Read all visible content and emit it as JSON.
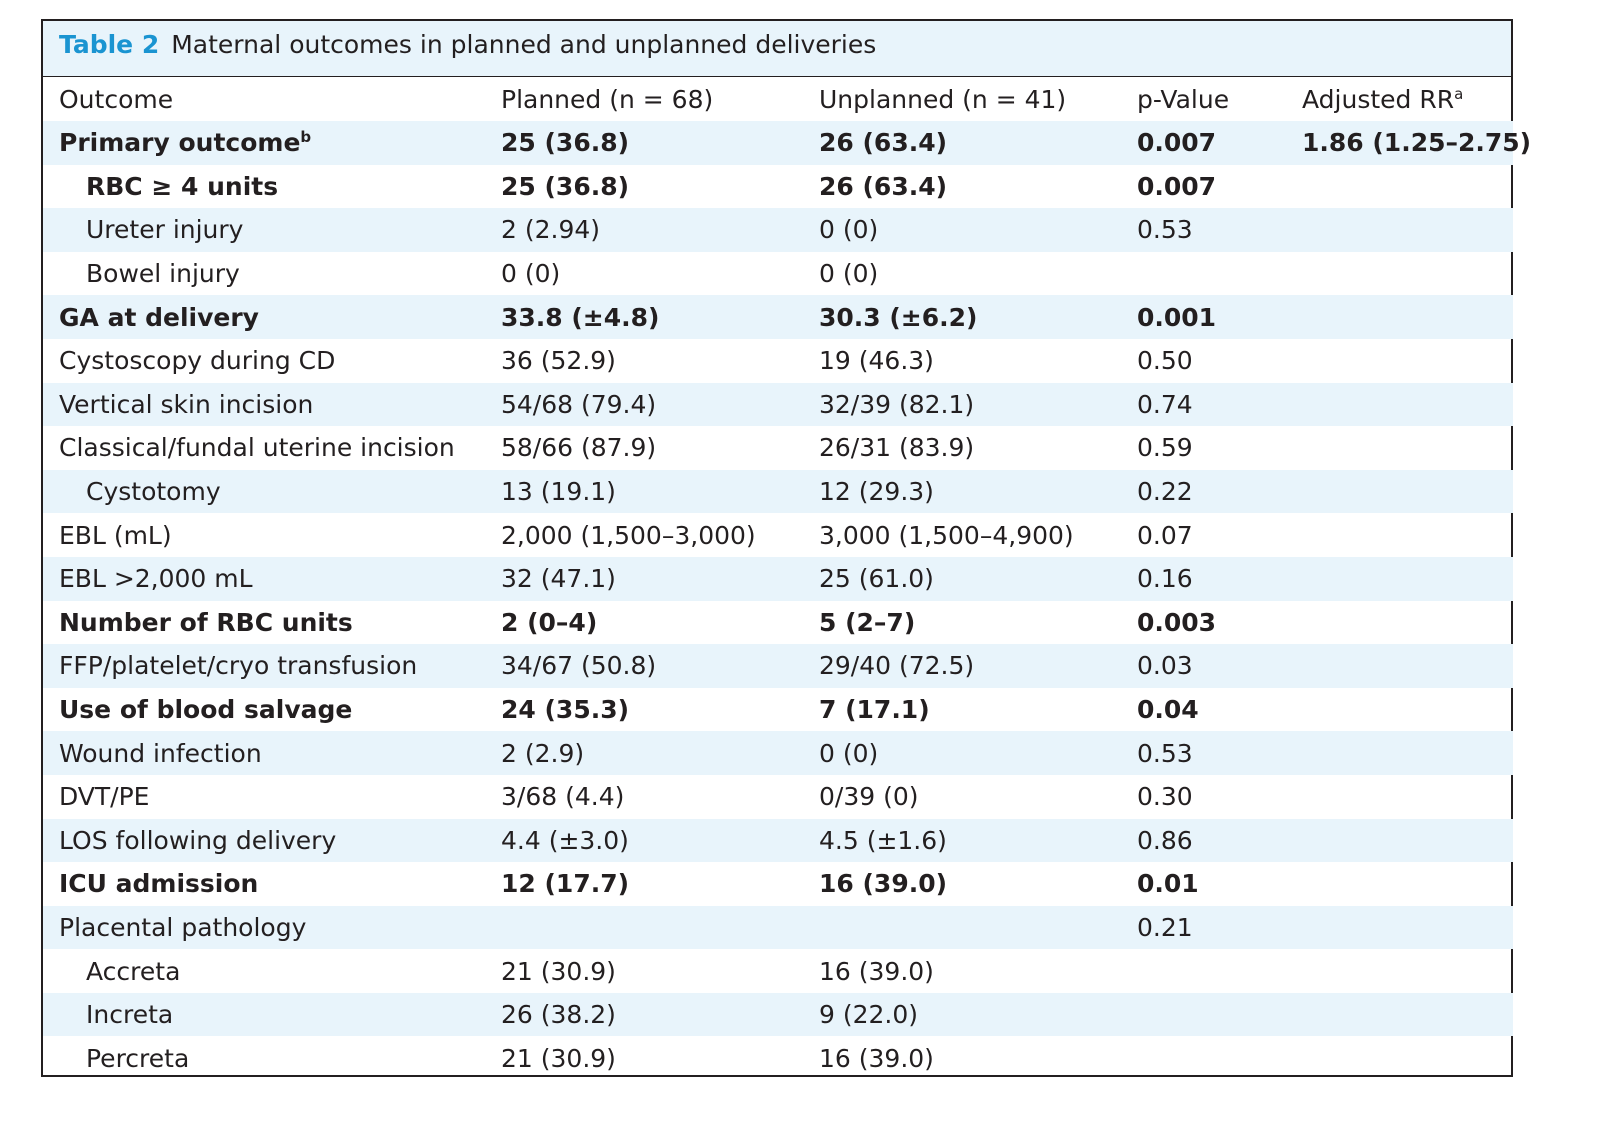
{
  "caption": {
    "label": "Table 2",
    "title": "Maternal outcomes in planned and unplanned deliveries"
  },
  "header": {
    "outcome": "Outcome",
    "planned": "Planned (n = 68)",
    "unplanned": "Unplanned (n = 41)",
    "pvalue": "p-Value",
    "rr": "Adjusted RR",
    "rr_sup": "a"
  },
  "rows": [
    {
      "outcome": "Primary outcome",
      "sup": "b",
      "planned": "25 (36.8)",
      "unplanned": "26 (63.4)",
      "p": "0.007",
      "rr": "1.86 (1.25–2.75)",
      "bold": true,
      "indent": false
    },
    {
      "outcome": "RBC ≥ 4 units",
      "sup": "",
      "planned": "25 (36.8)",
      "unplanned": "26 (63.4)",
      "p": "0.007",
      "rr": "",
      "bold": true,
      "indent": true
    },
    {
      "outcome": "Ureter injury",
      "sup": "",
      "planned": "2 (2.94)",
      "unplanned": "0 (0)",
      "p": "0.53",
      "rr": "",
      "bold": false,
      "indent": true
    },
    {
      "outcome": "Bowel injury",
      "sup": "",
      "planned": "0 (0)",
      "unplanned": "0 (0)",
      "p": "",
      "rr": "",
      "bold": false,
      "indent": true
    },
    {
      "outcome": "GA at delivery",
      "sup": "",
      "planned": "33.8 (±4.8)",
      "unplanned": "30.3 (±6.2)",
      "p": "0.001",
      "rr": "",
      "bold": true,
      "indent": false
    },
    {
      "outcome": "Cystoscopy during CD",
      "sup": "",
      "planned": "36 (52.9)",
      "unplanned": "19 (46.3)",
      "p": "0.50",
      "rr": "",
      "bold": false,
      "indent": false
    },
    {
      "outcome": "Vertical skin incision",
      "sup": "",
      "planned": "54/68 (79.4)",
      "unplanned": "32/39 (82.1)",
      "p": "0.74",
      "rr": "",
      "bold": false,
      "indent": false
    },
    {
      "outcome": "Classical/fundal uterine incision",
      "sup": "",
      "planned": "58/66 (87.9)",
      "unplanned": "26/31 (83.9)",
      "p": "0.59",
      "rr": "",
      "bold": false,
      "indent": false
    },
    {
      "outcome": "Cystotomy",
      "sup": "",
      "planned": "13 (19.1)",
      "unplanned": "12 (29.3)",
      "p": "0.22",
      "rr": "",
      "bold": false,
      "indent": true
    },
    {
      "outcome": "EBL (mL)",
      "sup": "",
      "planned": "2,000 (1,500–3,000)",
      "unplanned": "3,000 (1,500–4,900)",
      "p": "0.07",
      "rr": "",
      "bold": false,
      "indent": false
    },
    {
      "outcome": "EBL >2,000 mL",
      "sup": "",
      "planned": "32 (47.1)",
      "unplanned": "25 (61.0)",
      "p": "0.16",
      "rr": "",
      "bold": false,
      "indent": false
    },
    {
      "outcome": "Number of RBC units",
      "sup": "",
      "planned": "2 (0–4)",
      "unplanned": "5 (2–7)",
      "p": "0.003",
      "rr": "",
      "bold": true,
      "indent": false
    },
    {
      "outcome": "FFP/platelet/cryo transfusion",
      "sup": "",
      "planned": "34/67 (50.8)",
      "unplanned": "29/40 (72.5)",
      "p": "0.03",
      "rr": "",
      "bold": false,
      "indent": false
    },
    {
      "outcome": "Use of blood salvage",
      "sup": "",
      "planned": "24 (35.3)",
      "unplanned": "7 (17.1)",
      "p": "0.04",
      "rr": "",
      "bold": true,
      "indent": false
    },
    {
      "outcome": "Wound infection",
      "sup": "",
      "planned": "2 (2.9)",
      "unplanned": "0 (0)",
      "p": "0.53",
      "rr": "",
      "bold": false,
      "indent": false
    },
    {
      "outcome": "DVT/PE",
      "sup": "",
      "planned": "3/68 (4.4)",
      "unplanned": "0/39 (0)",
      "p": "0.30",
      "rr": "",
      "bold": false,
      "indent": false
    },
    {
      "outcome": "LOS following delivery",
      "sup": "",
      "planned": "4.4 (±3.0)",
      "unplanned": "4.5 (±1.6)",
      "p": "0.86",
      "rr": "",
      "bold": false,
      "indent": false
    },
    {
      "outcome": "ICU admission",
      "sup": "",
      "planned": "12 (17.7)",
      "unplanned": "16 (39.0)",
      "p": "0.01",
      "rr": "",
      "bold": true,
      "indent": false
    },
    {
      "outcome": "Placental pathology",
      "sup": "",
      "planned": "",
      "unplanned": "",
      "p": "0.21",
      "rr": "",
      "bold": false,
      "indent": false
    },
    {
      "outcome": "Accreta",
      "sup": "",
      "planned": "21 (30.9)",
      "unplanned": "16 (39.0)",
      "p": "",
      "rr": "",
      "bold": false,
      "indent": true
    },
    {
      "outcome": "Increta",
      "sup": "",
      "planned": "26 (38.2)",
      "unplanned": "9 (22.0)",
      "p": "",
      "rr": "",
      "bold": false,
      "indent": true
    },
    {
      "outcome": "Percreta",
      "sup": "",
      "planned": "21 (30.9)",
      "unplanned": "16 (39.0)",
      "p": "",
      "rr": "",
      "bold": false,
      "indent": true
    }
  ],
  "colors": {
    "accent": "#1a94d1",
    "shade": "#e8f4fb",
    "text": "#231f20"
  }
}
